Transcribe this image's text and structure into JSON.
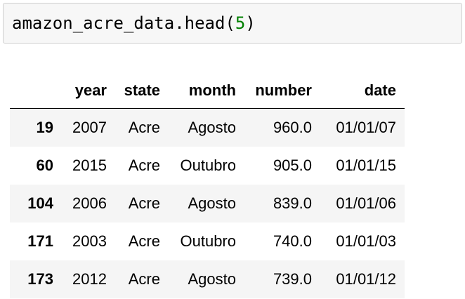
{
  "code_cell": {
    "code_prefix": "amazon_acre_data.head",
    "open_paren": "(",
    "argument": "5",
    "close_paren": ")"
  },
  "dataframe": {
    "index_header": "",
    "columns": [
      "year",
      "state",
      "month",
      "number",
      "date"
    ],
    "rows": [
      {
        "index": "19",
        "year": "2007",
        "state": "Acre",
        "month": "Agosto",
        "number": "960.0",
        "date": "01/01/07"
      },
      {
        "index": "60",
        "year": "2015",
        "state": "Acre",
        "month": "Outubro",
        "number": "905.0",
        "date": "01/01/15"
      },
      {
        "index": "104",
        "year": "2006",
        "state": "Acre",
        "month": "Agosto",
        "number": "839.0",
        "date": "01/01/06"
      },
      {
        "index": "171",
        "year": "2003",
        "state": "Acre",
        "month": "Outubro",
        "number": "740.0",
        "date": "01/01/03"
      },
      {
        "index": "173",
        "year": "2012",
        "state": "Acre",
        "month": "Agosto",
        "number": "739.0",
        "date": "01/01/12"
      }
    ]
  },
  "colors": {
    "cell_background": "#f7f7f7",
    "cell_border": "#cfcfcf",
    "number_literal": "#008000",
    "striped_row": "#f5f5f5"
  }
}
